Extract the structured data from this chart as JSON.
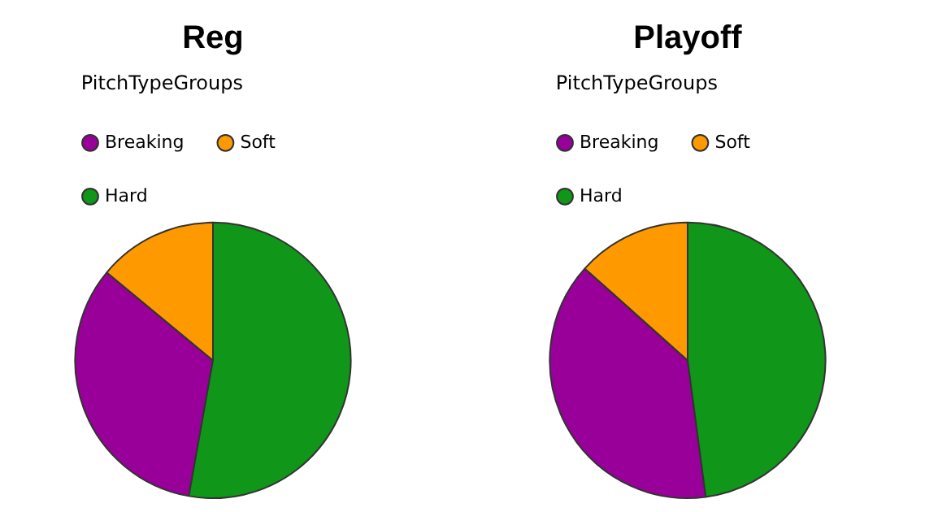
{
  "chart_data": [
    {
      "type": "pie",
      "title": "Reg",
      "legend_title": "PitchTypeGroups",
      "legend": "top",
      "categories": [
        "Breaking",
        "Soft",
        "Hard"
      ],
      "values": [
        33.2,
        14,
        52.8
      ],
      "colors": [
        "#990099",
        "#ff9900",
        "#109618"
      ]
    },
    {
      "type": "pie",
      "title": "Playoff",
      "legend_title": "PitchTypeGroups",
      "legend": "top",
      "categories": [
        "Breaking",
        "Soft",
        "Hard"
      ],
      "values": [
        38.7,
        13.4,
        47.9
      ],
      "colors": [
        "#990099",
        "#ff9900",
        "#109618"
      ]
    }
  ]
}
